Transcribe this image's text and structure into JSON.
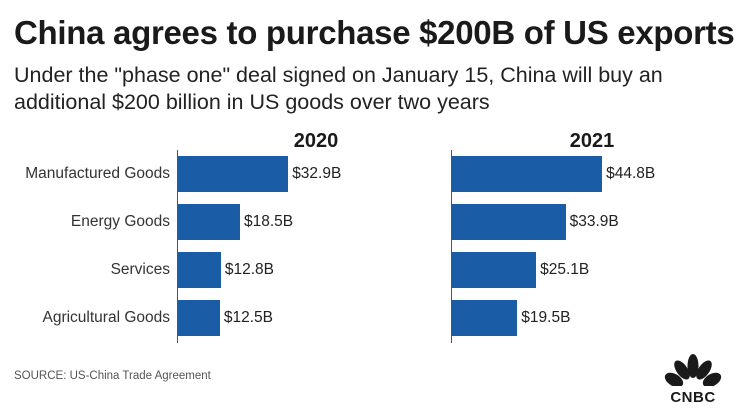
{
  "header": {
    "title": "China agrees to purchase $200B of US exports",
    "subtitle": "Under the \"phase one\" deal signed on January 15, China will buy an additional $200 billion in US goods over two years"
  },
  "chart_data": {
    "type": "bar",
    "orientation": "horizontal",
    "title": "China agrees to purchase $200B of US exports",
    "subtitle": "Under the \"phase one\" deal signed on January 15, China will buy an additional $200 billion in US goods over two years",
    "categories": [
      "Manufactured Goods",
      "Energy Goods",
      "Services",
      "Agricultural Goods"
    ],
    "unit": "US$ billions",
    "bar_color": "#1a5da6",
    "panels": [
      {
        "name": "2020",
        "values": [
          32.9,
          18.5,
          12.8,
          12.5
        ],
        "labels": [
          "$32.9B",
          "$18.5B",
          "$12.8B",
          "$12.5B"
        ]
      },
      {
        "name": "2021",
        "values": [
          44.8,
          33.9,
          25.1,
          19.5
        ],
        "labels": [
          "$44.8B",
          "$33.9B",
          "$25.1B",
          "$19.5B"
        ]
      }
    ]
  },
  "footer": {
    "source": "SOURCE: US-China Trade Agreement",
    "logo_text": "CNBC"
  }
}
